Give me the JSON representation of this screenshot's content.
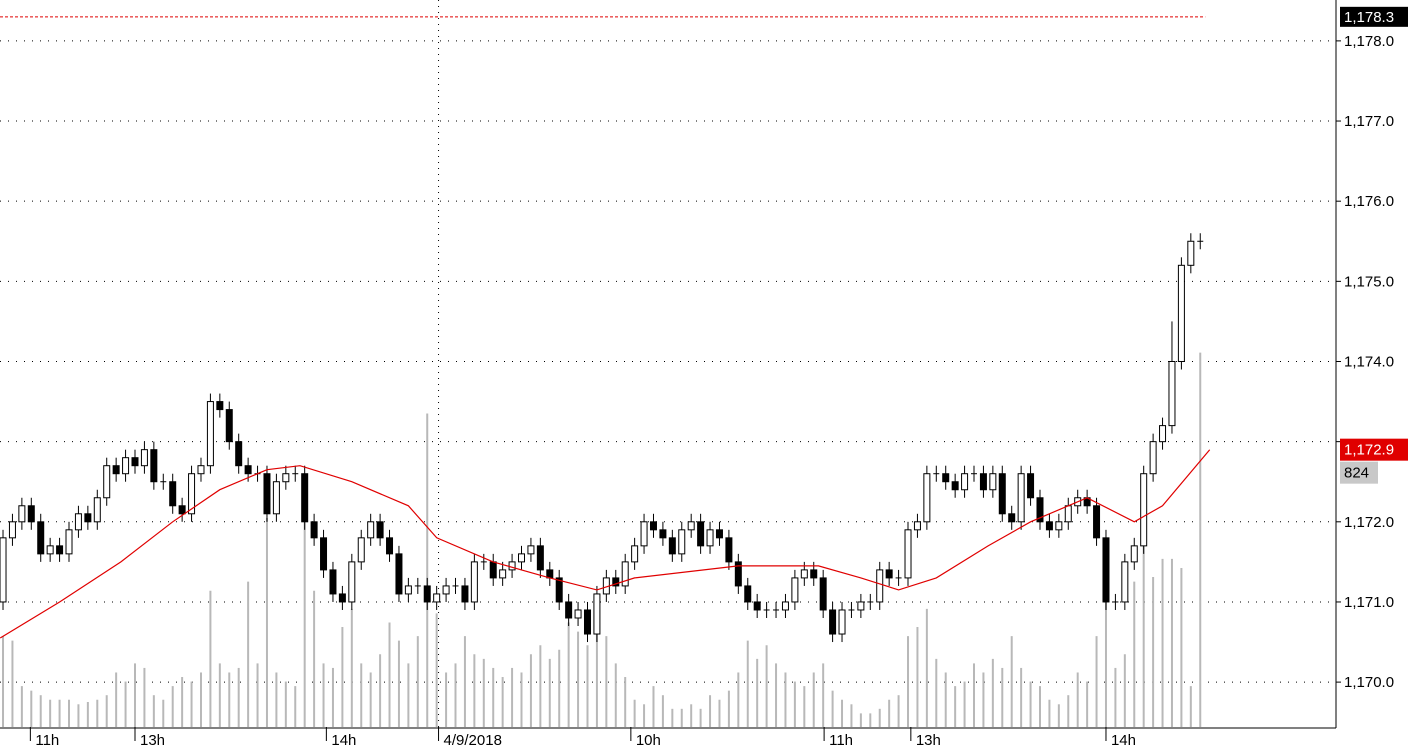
{
  "chart_data": {
    "type": "candlestick",
    "open": [
      1171.0,
      1171.8,
      1172.0,
      1172.2,
      1172.0,
      1171.6,
      1171.7,
      1171.6,
      1171.9,
      1172.1,
      1172.0,
      1172.3,
      1172.7,
      1172.6,
      1172.8,
      1172.7,
      1172.9,
      1172.5,
      1172.5,
      1172.2,
      1172.1,
      1172.6,
      1172.7,
      1173.5,
      1173.4,
      1173.0,
      1172.7,
      1172.6,
      1172.6,
      1172.1,
      1172.5,
      1172.6,
      1172.6,
      1172.0,
      1171.8,
      1171.4,
      1171.1,
      1171.0,
      1171.5,
      1171.8,
      1172.0,
      1171.8,
      1171.6,
      1171.1,
      1171.2,
      1171.2,
      1171.0,
      1171.1,
      1171.2,
      1171.2,
      1171.0,
      1171.5,
      1171.5,
      1171.3,
      1171.4,
      1171.5,
      1171.6,
      1171.7,
      1171.4,
      1171.3,
      1171.0,
      1170.8,
      1170.9,
      1170.6,
      1171.1,
      1171.3,
      1171.2,
      1171.5,
      1171.7,
      1172.0,
      1171.9,
      1171.8,
      1171.6,
      1171.9,
      1172.0,
      1171.7,
      1171.9,
      1171.8,
      1171.5,
      1171.2,
      1171.0,
      1170.9,
      1170.9,
      1170.9,
      1171.0,
      1171.3,
      1171.4,
      1171.3,
      1170.9,
      1170.6,
      1170.9,
      1170.9,
      1171.0,
      1171.0,
      1171.4,
      1171.3,
      1171.3,
      1171.9,
      1172.0,
      1172.6,
      1172.6,
      1172.5,
      1172.4,
      1172.6,
      1172.6,
      1172.4,
      1172.6,
      1172.1,
      1172.0,
      1172.6,
      1172.3,
      1172.0,
      1171.9,
      1172.0,
      1172.2,
      1172.3,
      1172.2,
      1171.8,
      1171.0,
      1171.0,
      1171.5,
      1171.7,
      1172.6,
      1173.0,
      1173.2,
      1174.0,
      1175.2,
      1175.5
    ],
    "high": [
      1171.9,
      1172.1,
      1172.3,
      1172.3,
      1172.1,
      1171.8,
      1171.8,
      1172.0,
      1172.2,
      1172.2,
      1172.4,
      1172.8,
      1172.8,
      1172.9,
      1172.9,
      1173.0,
      1173.0,
      1172.6,
      1172.6,
      1172.3,
      1172.7,
      1172.8,
      1173.6,
      1173.6,
      1173.5,
      1173.1,
      1172.8,
      1172.7,
      1172.7,
      1172.6,
      1172.7,
      1172.7,
      1172.7,
      1172.1,
      1171.9,
      1171.5,
      1171.2,
      1171.6,
      1171.9,
      1172.1,
      1172.1,
      1171.9,
      1171.7,
      1171.3,
      1171.3,
      1171.3,
      1171.2,
      1171.3,
      1171.3,
      1171.3,
      1171.6,
      1171.6,
      1171.6,
      1171.5,
      1171.6,
      1171.7,
      1171.8,
      1171.8,
      1171.5,
      1171.4,
      1171.1,
      1171.0,
      1171.0,
      1171.2,
      1171.4,
      1171.4,
      1171.6,
      1171.8,
      1172.1,
      1172.1,
      1172.0,
      1171.9,
      1172.0,
      1172.1,
      1172.1,
      1172.0,
      1172.0,
      1171.9,
      1171.6,
      1171.3,
      1171.1,
      1171.0,
      1171.0,
      1171.1,
      1171.4,
      1171.5,
      1171.5,
      1171.4,
      1171.0,
      1171.0,
      1171.0,
      1171.1,
      1171.1,
      1171.5,
      1171.5,
      1171.4,
      1172.0,
      1172.1,
      1172.7,
      1172.7,
      1172.7,
      1172.6,
      1172.7,
      1172.7,
      1172.7,
      1172.7,
      1172.7,
      1172.2,
      1172.7,
      1172.7,
      1172.4,
      1172.1,
      1172.1,
      1172.3,
      1172.4,
      1172.4,
      1172.3,
      1171.9,
      1171.1,
      1171.6,
      1171.8,
      1172.7,
      1173.1,
      1173.3,
      1174.5,
      1175.3,
      1175.6,
      1175.6
    ],
    "low": [
      1170.9,
      1171.7,
      1171.9,
      1171.9,
      1171.5,
      1171.5,
      1171.5,
      1171.5,
      1171.8,
      1171.9,
      1171.9,
      1172.2,
      1172.5,
      1172.5,
      1172.6,
      1172.6,
      1172.4,
      1172.4,
      1172.1,
      1172.0,
      1172.0,
      1172.5,
      1172.6,
      1173.3,
      1172.9,
      1172.6,
      1172.5,
      1172.5,
      1172.0,
      1172.0,
      1172.4,
      1172.5,
      1171.9,
      1171.7,
      1171.3,
      1171.0,
      1170.9,
      1170.9,
      1171.4,
      1171.7,
      1171.7,
      1171.5,
      1171.0,
      1171.0,
      1171.1,
      1170.9,
      1170.9,
      1171.0,
      1171.1,
      1170.9,
      1170.9,
      1171.4,
      1171.2,
      1171.2,
      1171.3,
      1171.4,
      1171.5,
      1171.3,
      1171.2,
      1170.9,
      1170.7,
      1170.7,
      1170.5,
      1170.5,
      1171.0,
      1171.1,
      1171.1,
      1171.4,
      1171.6,
      1171.8,
      1171.7,
      1171.5,
      1171.5,
      1171.8,
      1171.6,
      1171.6,
      1171.7,
      1171.4,
      1171.1,
      1170.9,
      1170.8,
      1170.8,
      1170.8,
      1170.8,
      1170.9,
      1171.2,
      1171.2,
      1170.8,
      1170.5,
      1170.5,
      1170.8,
      1170.8,
      1170.9,
      1170.9,
      1171.2,
      1171.2,
      1171.2,
      1171.8,
      1171.9,
      1172.5,
      1172.4,
      1172.3,
      1172.3,
      1172.5,
      1172.3,
      1172.3,
      1172.0,
      1171.9,
      1171.9,
      1172.2,
      1171.9,
      1171.8,
      1171.8,
      1171.9,
      1172.1,
      1172.1,
      1171.7,
      1170.9,
      1170.9,
      1170.9,
      1171.4,
      1171.6,
      1172.5,
      1172.9,
      1173.1,
      1173.9,
      1175.1,
      1175.4
    ],
    "close": [
      1171.8,
      1172.0,
      1172.2,
      1172.0,
      1171.6,
      1171.7,
      1171.6,
      1171.9,
      1172.1,
      1172.0,
      1172.3,
      1172.7,
      1172.6,
      1172.8,
      1172.7,
      1172.9,
      1172.5,
      1172.5,
      1172.2,
      1172.1,
      1172.6,
      1172.7,
      1173.5,
      1173.4,
      1173.0,
      1172.7,
      1172.6,
      1172.6,
      1172.1,
      1172.5,
      1172.6,
      1172.6,
      1172.0,
      1171.8,
      1171.4,
      1171.1,
      1171.0,
      1171.5,
      1171.8,
      1172.0,
      1171.8,
      1171.6,
      1171.1,
      1171.2,
      1171.2,
      1171.0,
      1171.1,
      1171.2,
      1171.2,
      1171.0,
      1171.5,
      1171.5,
      1171.3,
      1171.4,
      1171.5,
      1171.6,
      1171.7,
      1171.4,
      1171.3,
      1171.0,
      1170.8,
      1170.9,
      1170.6,
      1171.1,
      1171.3,
      1171.2,
      1171.5,
      1171.7,
      1172.0,
      1171.9,
      1171.8,
      1171.6,
      1171.9,
      1172.0,
      1171.7,
      1171.9,
      1171.8,
      1171.5,
      1171.2,
      1171.0,
      1170.9,
      1170.9,
      1170.9,
      1171.0,
      1171.3,
      1171.4,
      1171.3,
      1170.9,
      1170.6,
      1170.9,
      1170.9,
      1171.0,
      1171.0,
      1171.4,
      1171.3,
      1171.3,
      1171.9,
      1172.0,
      1172.6,
      1172.6,
      1172.5,
      1172.4,
      1172.6,
      1172.6,
      1172.4,
      1172.6,
      1172.1,
      1172.0,
      1172.6,
      1172.3,
      1172.0,
      1171.9,
      1172.0,
      1172.2,
      1172.3,
      1172.2,
      1171.8,
      1171.0,
      1171.0,
      1171.5,
      1171.7,
      1172.6,
      1173.0,
      1173.2,
      1174.0,
      1175.2,
      1175.5,
      1175.5
    ],
    "volume": [
      200,
      190,
      90,
      80,
      70,
      60,
      60,
      60,
      50,
      55,
      60,
      70,
      120,
      100,
      140,
      130,
      70,
      60,
      90,
      110,
      100,
      120,
      300,
      140,
      120,
      130,
      320,
      140,
      460,
      120,
      100,
      90,
      550,
      300,
      140,
      130,
      220,
      260,
      140,
      120,
      160,
      230,
      190,
      140,
      200,
      690,
      250,
      120,
      140,
      200,
      160,
      150,
      130,
      110,
      130,
      120,
      160,
      180,
      150,
      170,
      230,
      210,
      180,
      220,
      200,
      140,
      110,
      60,
      50,
      90,
      70,
      40,
      40,
      50,
      40,
      70,
      60,
      80,
      120,
      190,
      150,
      180,
      140,
      120,
      100,
      90,
      120,
      140,
      80,
      60,
      50,
      30,
      30,
      40,
      60,
      70,
      200,
      220,
      260,
      150,
      120,
      90,
      100,
      140,
      120,
      150,
      130,
      200,
      130,
      100,
      90,
      60,
      50,
      70,
      120,
      100,
      200,
      290,
      130,
      160,
      320,
      420,
      330,
      370,
      370,
      350,
      90,
      824
    ],
    "volume_ylim": [
      0,
      1600
    ],
    "volume_last_label": "824",
    "ma": {
      "color": "#e00000",
      "x": [
        -0.3,
        6,
        12.5,
        18,
        23,
        28,
        31.5,
        37,
        43,
        46,
        52,
        58,
        63,
        67,
        78,
        86.5,
        91,
        95,
        99,
        104.5,
        109,
        115,
        120,
        123,
        128
      ],
      "values": [
        1170.55,
        1171.0,
        1171.5,
        1172.0,
        1172.4,
        1172.65,
        1172.7,
        1172.5,
        1172.2,
        1171.8,
        1171.5,
        1171.3,
        1171.15,
        1171.3,
        1171.45,
        1171.45,
        1171.3,
        1171.15,
        1171.3,
        1171.7,
        1172.0,
        1172.3,
        1172.0,
        1172.2,
        1172.9
      ]
    },
    "ma_last": {
      "value": 1172.9,
      "label": "1,172.9"
    },
    "price_line": {
      "value": 1178.3,
      "label": "1,178.3",
      "color": "#e00000"
    },
    "xlim": [
      -0.32,
      141.4
    ],
    "ylim": [
      1169.44,
      1178.51
    ],
    "yticks": [
      {
        "value": 1170,
        "label": "1,170.0"
      },
      {
        "value": 1171,
        "label": "1,171.0"
      },
      {
        "value": 1172,
        "label": "1,172.0"
      },
      {
        "value": 1173,
        "label": ""
      },
      {
        "value": 1174,
        "label": "1,174.0"
      },
      {
        "value": 1175,
        "label": "1,175.0"
      },
      {
        "value": 1176,
        "label": "1,176.0"
      },
      {
        "value": 1177,
        "label": "1,177.0"
      },
      {
        "value": 1178,
        "label": "1,178.0"
      }
    ],
    "xticks": [
      {
        "value": 2.9,
        "label": "11h"
      },
      {
        "value": 14,
        "label": "13h"
      },
      {
        "value": 34.3,
        "label": "14h"
      },
      {
        "value": 46.2,
        "label": "4/9/2018"
      },
      {
        "value": 66.6,
        "label": "10h"
      },
      {
        "value": 87.1,
        "label": "11h"
      },
      {
        "value": 96.3,
        "label": "13h"
      },
      {
        "value": 117,
        "label": "14h"
      }
    ],
    "day_break": 46.2,
    "grid": true
  }
}
